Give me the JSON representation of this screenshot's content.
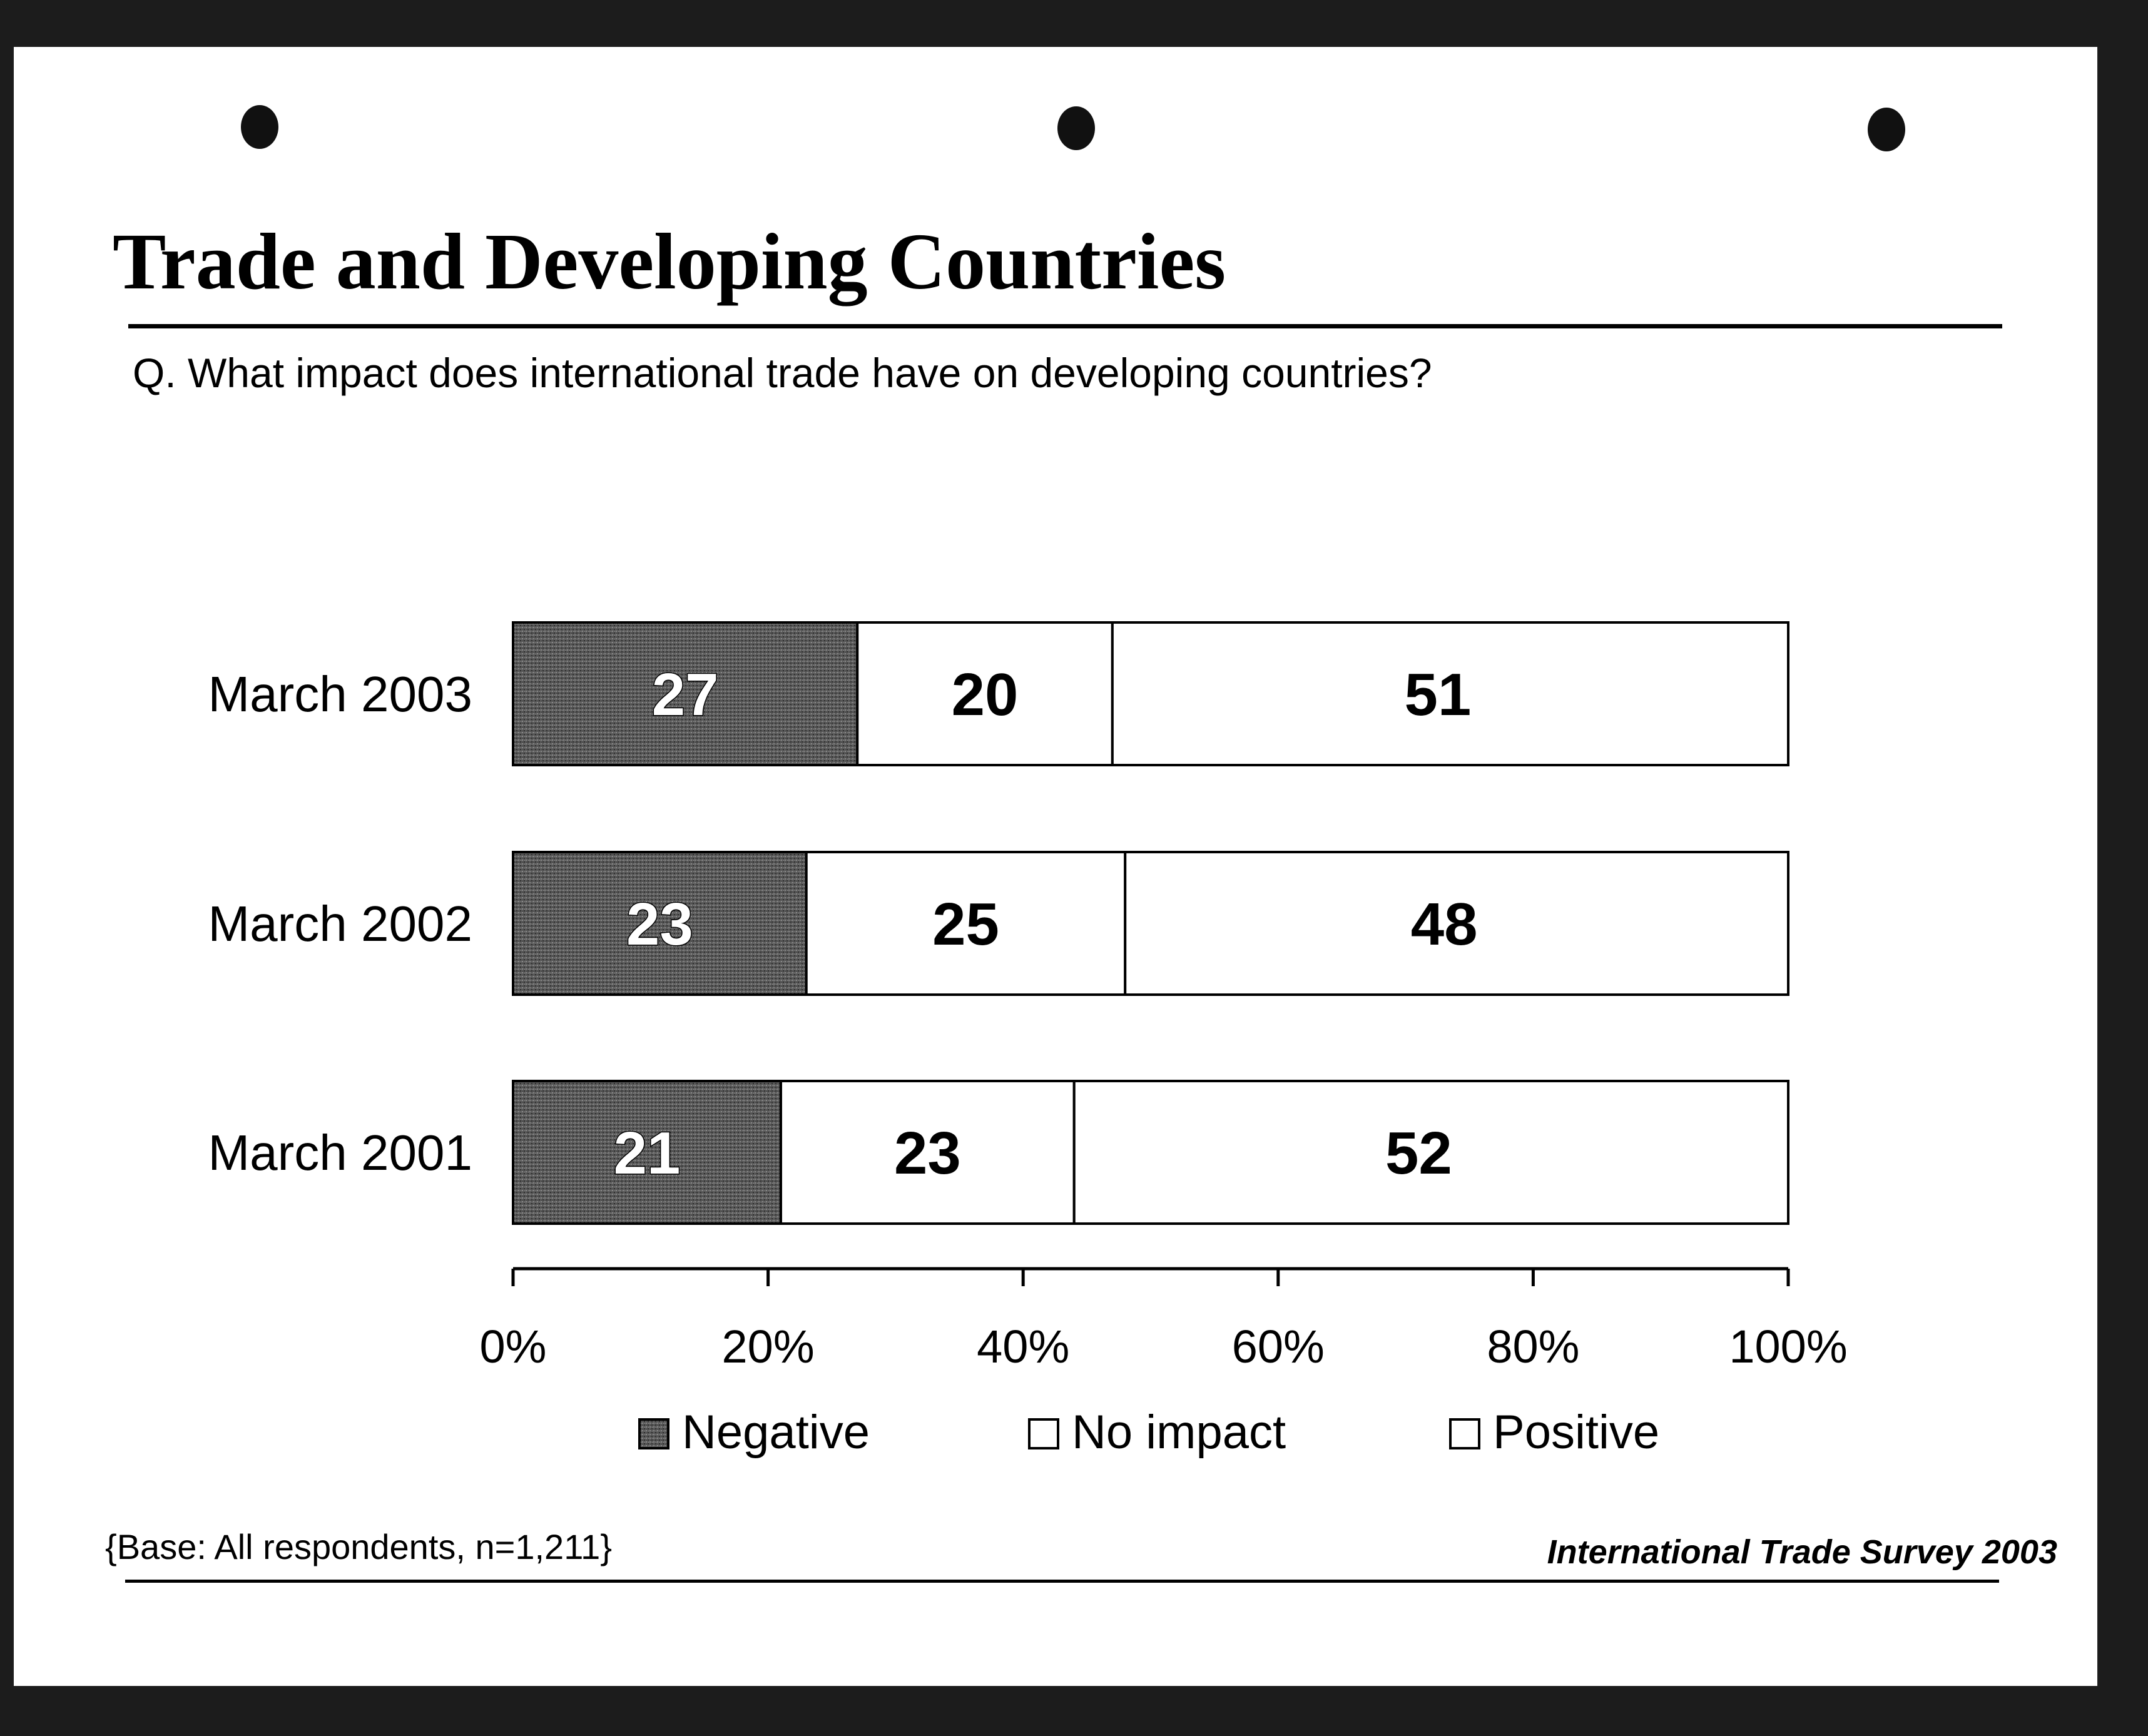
{
  "title": "Trade and Developing Countries",
  "question": "Q. What impact does international trade have on developing countries?",
  "footer": {
    "base": "{Base: All respondents, n=1,211}",
    "source": "International Trade Survey 2003"
  },
  "chart_data": {
    "type": "bar",
    "orientation": "horizontal",
    "stacked": true,
    "categories": [
      "March 2003",
      "March 2002",
      "March 2001"
    ],
    "series": [
      {
        "name": "Negative",
        "values": [
          27,
          23,
          21
        ],
        "color": "#4a4a4a"
      },
      {
        "name": "No impact",
        "values": [
          20,
          25,
          23
        ],
        "color": "#ffffff"
      },
      {
        "name": "Positive",
        "values": [
          51,
          48,
          52
        ],
        "color": "#ffffff"
      }
    ],
    "xlim": [
      0,
      100
    ],
    "xticks": [
      "0%",
      "20%",
      "40%",
      "60%",
      "80%",
      "100%"
    ],
    "legend_position": "bottom",
    "grid": false
  }
}
